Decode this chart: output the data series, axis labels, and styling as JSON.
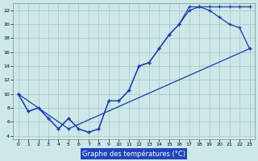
{
  "xlabel": "Graphe des températures (°C)",
  "background_color": "#cce8e8",
  "grid_color": "#b0c8c8",
  "line_color": "#1a3aaa",
  "xlim": [
    -0.5,
    23.5
  ],
  "ylim": [
    3.5,
    23.0
  ],
  "xticks": [
    0,
    1,
    2,
    3,
    4,
    5,
    6,
    7,
    8,
    9,
    10,
    11,
    12,
    13,
    14,
    15,
    16,
    17,
    18,
    19,
    20,
    21,
    22,
    23
  ],
  "yticks": [
    4,
    6,
    8,
    10,
    12,
    14,
    16,
    18,
    20,
    22
  ],
  "line1_x": [
    0,
    1,
    2,
    3,
    4,
    5,
    6,
    7,
    8,
    9,
    10,
    11,
    12,
    13,
    14,
    15,
    16,
    17,
    18,
    19,
    20,
    21,
    22,
    23
  ],
  "line1_y": [
    10,
    7.5,
    8,
    6.5,
    5,
    6.5,
    5,
    4.5,
    5,
    9,
    9,
    10.5,
    14,
    14.5,
    16.5,
    18.5,
    20,
    22.5,
    22.5,
    22.5,
    22.5,
    22.5,
    22.5,
    22.5
  ],
  "line2_x": [
    0,
    1,
    2,
    3,
    4,
    5,
    6,
    7,
    8,
    9,
    10,
    11,
    12,
    13,
    14,
    15,
    16,
    17,
    18,
    19,
    20,
    21,
    22,
    23
  ],
  "line2_y": [
    10,
    7.5,
    8,
    6.5,
    5,
    6.5,
    5,
    4.5,
    5,
    9,
    9,
    10.5,
    14,
    14.5,
    16.5,
    18.5,
    20,
    22,
    22.5,
    22.0,
    21.0,
    20.0,
    19.5,
    16.5
  ],
  "line3_x": [
    0,
    5,
    23
  ],
  "line3_y": [
    10,
    5,
    16.5
  ]
}
